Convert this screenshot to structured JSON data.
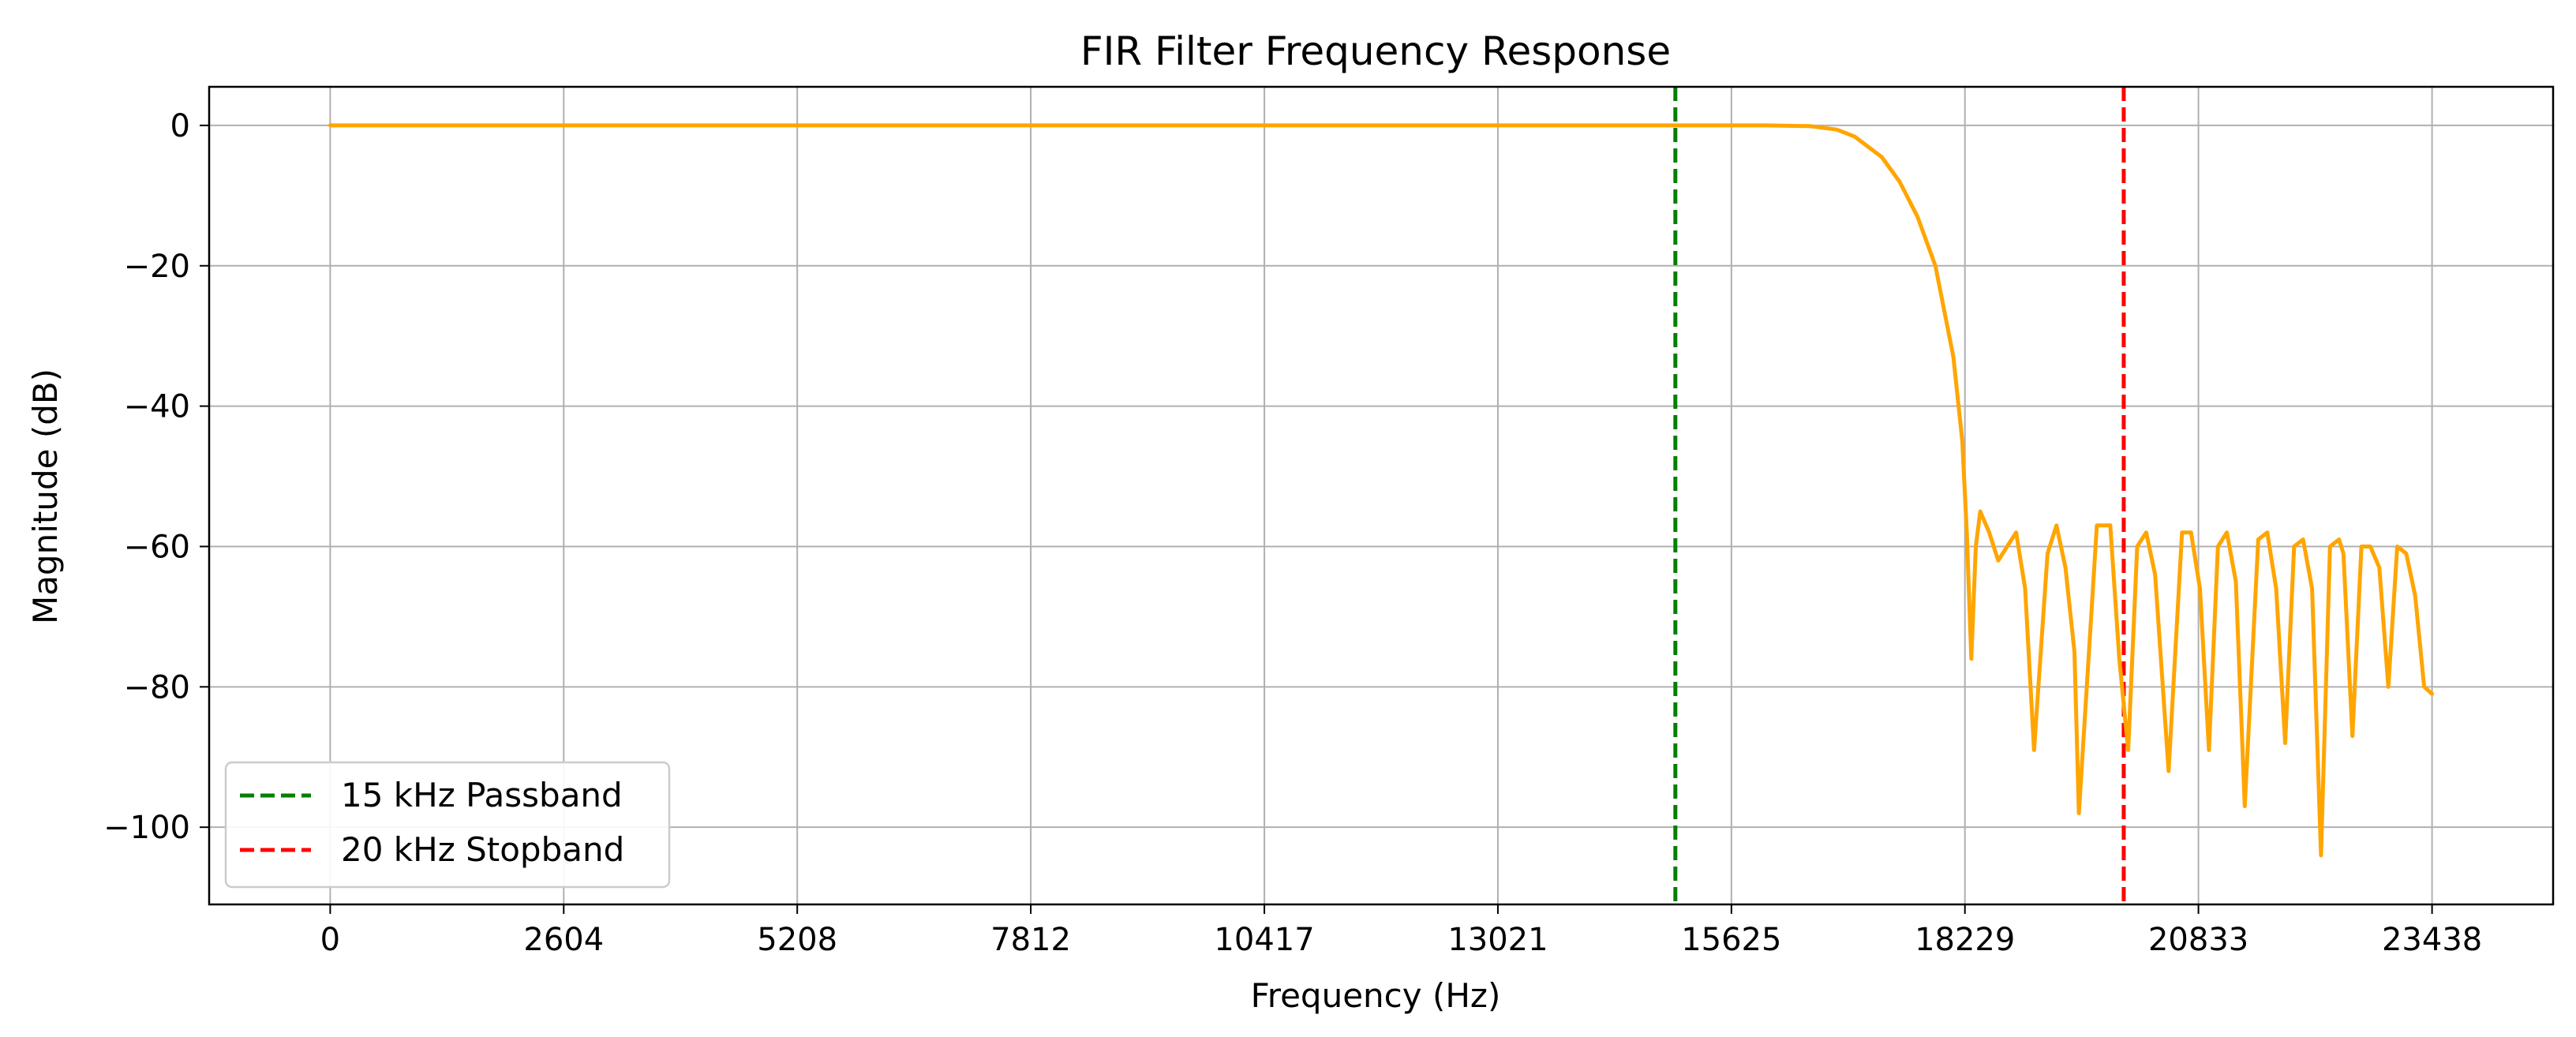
{
  "chart_data": {
    "type": "line",
    "title": "FIR Filter Frequency Response",
    "xlabel": "Frequency (Hz)",
    "ylabel": "Magnitude (dB)",
    "xlim": [
      -1350,
      24788
    ],
    "ylim": [
      -111,
      5.5
    ],
    "xticks": [
      0,
      2604,
      5208,
      7812,
      10417,
      13021,
      15625,
      18229,
      20833,
      23438
    ],
    "xtick_labels": [
      "0",
      "2604",
      "5208",
      "7812",
      "10417",
      "13021",
      "15625",
      "18229",
      "20833",
      "23438"
    ],
    "yticks": [
      0,
      -20,
      -40,
      -60,
      -80,
      -100
    ],
    "ytick_labels": [
      "0",
      "−20",
      "−40",
      "−60",
      "−80",
      "−100"
    ],
    "grid": true,
    "legend_position": "lower-left",
    "series": [
      {
        "name": "",
        "color": "#ffa500",
        "style": "solid",
        "x": [
          0,
          2000,
          4000,
          6000,
          8000,
          10000,
          12000,
          14000,
          16000,
          16500,
          16800,
          17000,
          17300,
          17500,
          17700,
          17900,
          18100,
          18200,
          18250,
          18300,
          18350,
          18400,
          18500,
          18600,
          18700,
          18800,
          18900,
          19000,
          19150,
          19250,
          19350,
          19450,
          19500,
          19700,
          19850,
          19950,
          20050,
          20150,
          20250,
          20350,
          20500,
          20650,
          20750,
          20850,
          20950,
          21050,
          21150,
          21250,
          21350,
          21500,
          21600,
          21700,
          21800,
          21900,
          22000,
          22100,
          22200,
          22300,
          22400,
          22450,
          22550,
          22650,
          22750,
          22850,
          22950,
          23050,
          23150,
          23250,
          23350,
          23438
        ],
        "y": [
          0,
          0,
          0,
          0,
          0,
          0,
          0,
          0,
          0,
          -0.1,
          -0.6,
          -1.6,
          -4.5,
          -8,
          -13,
          -20,
          -33,
          -45,
          -58,
          -76,
          -60,
          -55,
          -58,
          -62,
          -60,
          -58,
          -66,
          -89,
          -61,
          -57,
          -63,
          -75,
          -98,
          -57,
          -57,
          -76,
          -89,
          -60,
          -58,
          -64,
          -92,
          -58,
          -58,
          -66,
          -89,
          -60,
          -58,
          -65,
          -97,
          -59,
          -58,
          -66,
          -88,
          -60,
          -59,
          -66,
          -104,
          -60,
          -59,
          -61,
          -87,
          -60,
          -60,
          -63,
          -80,
          -60,
          -61,
          -67,
          -80,
          -81
        ]
      }
    ],
    "reference_lines": [
      {
        "name": "15 kHz Passband",
        "x": 15000,
        "color": "#008000",
        "style": "dashed"
      },
      {
        "name": "20 kHz Stopband",
        "x": 20000,
        "color": "#ff0000",
        "style": "dashed"
      }
    ]
  }
}
